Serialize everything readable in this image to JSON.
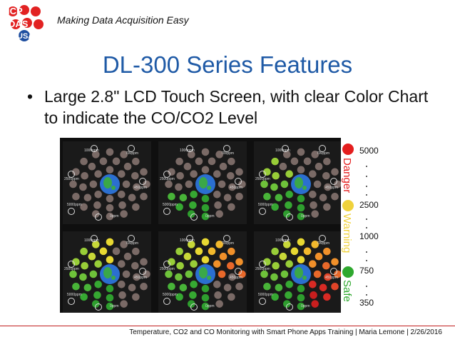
{
  "header": {
    "logo_text": "ICP DAS USA",
    "tagline": "Making Data Acquisition Easy"
  },
  "slide": {
    "title": "DL-300 Series Features",
    "bullet_marker": "•",
    "bullet_text": "Large 2.8\" LCD Touch Screen, with clear Color Chart to indicate the CO/CO2 Level"
  },
  "panels": {
    "labels": [
      "1000ppm",
      "700ppm",
      "2500ppm",
      "450ppm",
      "5000ppm",
      "0ppm"
    ],
    "levels": [
      0,
      1,
      2,
      3,
      4,
      5
    ]
  },
  "legend": {
    "zones": [
      {
        "label": "Danger",
        "color": "#e41e1e"
      },
      {
        "label": "Warning",
        "color": "#f0d23c"
      },
      {
        "label": "Safe",
        "color": "#2ea82e"
      }
    ],
    "values": [
      "5000",
      "2500",
      "1000",
      "750",
      "350"
    ]
  },
  "footer": {
    "text": "Temperature, CO2 and CO Monitoring with Smart Phone Apps Training | Maria Lemone | 2/26/2016"
  }
}
